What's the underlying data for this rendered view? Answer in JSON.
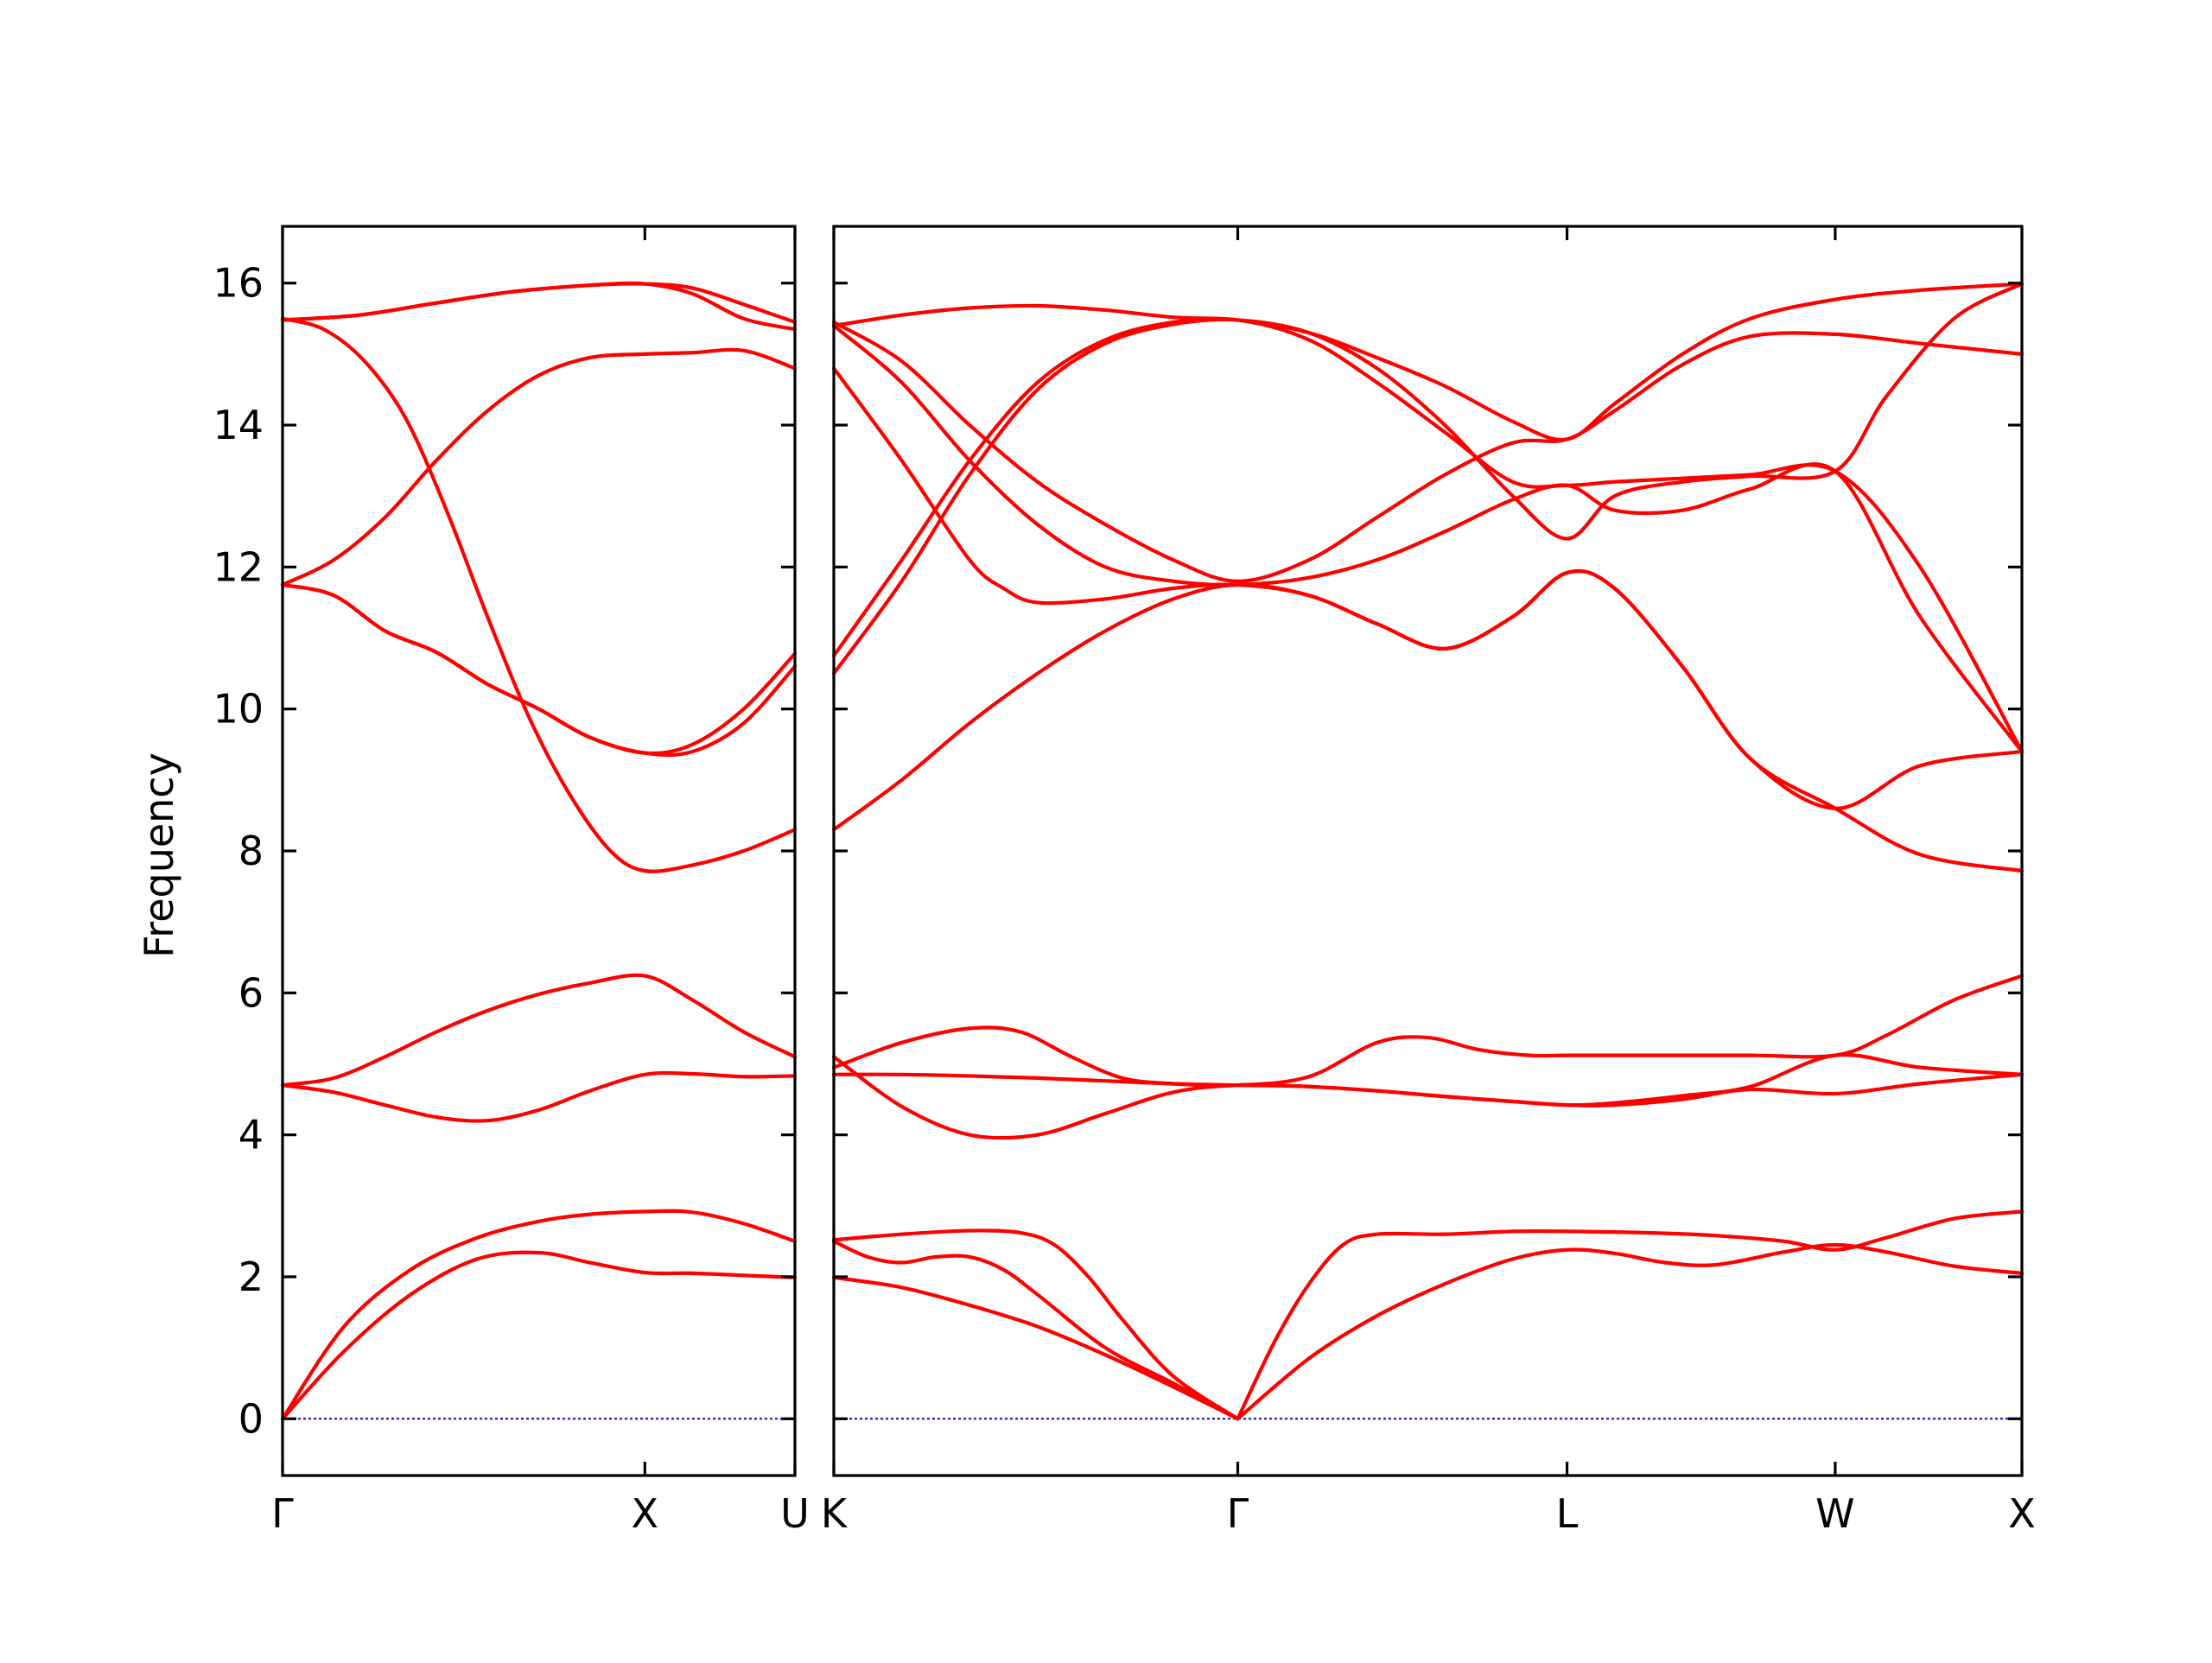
{
  "chart_data": {
    "type": "line",
    "ylabel": "Frequency",
    "ylim": [
      -0.8,
      16.8
    ],
    "yticks": [
      0,
      2,
      4,
      6,
      8,
      10,
      12,
      14,
      16
    ],
    "band_color": "#ff0000",
    "zero_line_color": "#0000cc",
    "grid": false,
    "segments": [
      {
        "name": "left",
        "xlim": [
          0,
          1.0
        ],
        "qpoint_ticks": [
          {
            "x": 0,
            "label": "Γ"
          },
          {
            "x": 0.7071,
            "label": "X"
          },
          {
            "x": 1.0,
            "label": "U"
          }
        ],
        "bands": [
          {
            "x": [
              0,
              0.12,
              0.25,
              0.38,
              0.5,
              0.6,
              0.7071,
              0.8,
              0.9,
              1.0
            ],
            "y": [
              0,
              0.95,
              1.75,
              2.25,
              2.34,
              2.2,
              2.06,
              2.05,
              2.02,
              1.99
            ]
          },
          {
            "x": [
              0,
              0.12,
              0.25,
              0.38,
              0.5,
              0.6,
              0.7071,
              0.8,
              0.9,
              1.0
            ],
            "y": [
              0,
              1.3,
              2.1,
              2.55,
              2.78,
              2.88,
              2.92,
              2.91,
              2.75,
              2.5
            ]
          },
          {
            "x": [
              0,
              0.1,
              0.2,
              0.3,
              0.4,
              0.5,
              0.6,
              0.7071,
              0.8,
              0.9,
              1.0
            ],
            "y": [
              4.7,
              4.6,
              4.42,
              4.25,
              4.2,
              4.35,
              4.62,
              4.85,
              4.86,
              4.82,
              4.83
            ]
          },
          {
            "x": [
              0,
              0.1,
              0.2,
              0.3,
              0.4,
              0.5,
              0.6,
              0.7071,
              0.8,
              0.9,
              1.0
            ],
            "y": [
              4.7,
              4.8,
              5.1,
              5.45,
              5.75,
              5.98,
              6.14,
              6.24,
              5.9,
              5.45,
              5.1
            ]
          },
          {
            "x": [
              0,
              0.08,
              0.16,
              0.24,
              0.32,
              0.4,
              0.48,
              0.56,
              0.64,
              0.7071,
              0.8,
              0.9,
              1.0
            ],
            "y": [
              15.5,
              15.35,
              14.9,
              14.1,
              12.8,
              11.3,
              9.9,
              8.8,
              8.0,
              7.72,
              7.8,
              8.0,
              8.3
            ]
          },
          {
            "x": [
              0,
              0.1,
              0.2,
              0.3,
              0.4,
              0.5,
              0.6,
              0.7071,
              0.8,
              0.9,
              1.0
            ],
            "y": [
              11.75,
              11.6,
              11.1,
              10.8,
              10.35,
              10.0,
              9.6,
              9.38,
              9.4,
              9.8,
              10.6
            ]
          },
          {
            "x": [
              0,
              0.1,
              0.2,
              0.3,
              0.4,
              0.5,
              0.6,
              0.7071,
              0.8,
              0.9,
              1.0
            ],
            "y": [
              11.75,
              11.6,
              11.1,
              10.8,
              10.35,
              10.0,
              9.6,
              9.38,
              9.5,
              10.0,
              10.78
            ]
          },
          {
            "x": [
              0,
              0.1,
              0.2,
              0.3,
              0.4,
              0.5,
              0.6,
              0.7071,
              0.8,
              0.9,
              1.0
            ],
            "y": [
              11.75,
              12.1,
              12.7,
              13.5,
              14.2,
              14.7,
              14.95,
              15.0,
              15.02,
              15.05,
              14.8
            ]
          },
          {
            "x": [
              0,
              0.15,
              0.3,
              0.45,
              0.6,
              0.7071,
              0.8,
              0.9,
              1.0
            ],
            "y": [
              15.48,
              15.55,
              15.72,
              15.88,
              15.97,
              15.99,
              15.93,
              15.7,
              15.45
            ]
          },
          {
            "x": [
              0,
              0.15,
              0.3,
              0.45,
              0.6,
              0.7071,
              0.8,
              0.9,
              1.0
            ],
            "y": [
              15.48,
              15.55,
              15.72,
              15.88,
              15.97,
              15.99,
              15.85,
              15.5,
              15.35
            ]
          }
        ]
      },
      {
        "name": "right",
        "xlim": [
          0,
          3.5
        ],
        "qpoint_ticks": [
          {
            "x": 0,
            "label": "K"
          },
          {
            "x": 1.19,
            "label": "Γ"
          },
          {
            "x": 2.16,
            "label": "L"
          },
          {
            "x": 2.95,
            "label": "W"
          },
          {
            "x": 3.5,
            "label": "X"
          }
        ],
        "bands": [
          {
            "x": [
              0,
              0.2,
              0.4,
              0.6,
              0.8,
              1.0,
              1.19
            ],
            "y": [
              1.99,
              1.85,
              1.6,
              1.3,
              0.9,
              0.45,
              0
            ]
          },
          {
            "x": [
              0,
              0.1,
              0.2,
              0.3,
              0.4,
              0.5,
              0.6,
              0.8,
              1.0,
              1.19
            ],
            "y": [
              2.5,
              2.28,
              2.2,
              2.28,
              2.28,
              2.1,
              1.75,
              1.0,
              0.5,
              0
            ]
          },
          {
            "x": [
              0,
              0.2,
              0.4,
              0.55,
              0.65,
              0.75,
              0.85,
              1.0,
              1.19
            ],
            "y": [
              2.52,
              2.6,
              2.65,
              2.62,
              2.45,
              2.0,
              1.4,
              0.6,
              0
            ]
          },
          {
            "x": [
              1.19,
              1.4,
              1.6,
              1.8,
              2.0,
              2.16,
              2.3,
              2.45,
              2.6,
              2.8,
              2.95,
              3.1,
              3.3,
              3.5
            ],
            "y": [
              0,
              0.85,
              1.45,
              1.9,
              2.25,
              2.38,
              2.33,
              2.2,
              2.17,
              2.35,
              2.45,
              2.35,
              2.15,
              2.05
            ]
          },
          {
            "x": [
              1.19,
              1.3,
              1.4,
              1.5,
              1.6,
              1.8,
              2.0,
              2.16,
              2.4,
              2.6,
              2.8,
              2.95,
              3.1,
              3.3,
              3.5
            ],
            "y": [
              0,
              1.1,
              1.9,
              2.45,
              2.6,
              2.6,
              2.64,
              2.64,
              2.62,
              2.58,
              2.5,
              2.38,
              2.55,
              2.82,
              2.92
            ]
          },
          {
            "x": [
              0,
              0.2,
              0.4,
              0.6,
              0.8,
              1.0,
              1.19,
              1.4,
              1.6,
              1.8,
              2.0,
              2.16,
              2.3,
              2.5,
              2.7,
              2.95,
              3.2,
              3.5
            ],
            "y": [
              4.85,
              4.85,
              4.83,
              4.8,
              4.76,
              4.72,
              4.7,
              4.68,
              4.62,
              4.54,
              4.47,
              4.42,
              4.42,
              4.5,
              4.64,
              4.58,
              4.72,
              4.85
            ]
          },
          {
            "x": [
              0,
              0.2,
              0.4,
              0.6,
              0.8,
              1.0,
              1.19,
              1.4,
              1.6,
              1.8,
              2.0,
              2.16,
              2.3,
              2.5,
              2.7,
              2.95,
              3.2,
              3.5
            ],
            "y": [
              5.1,
              4.4,
              4.0,
              4.0,
              4.3,
              4.6,
              4.7,
              4.68,
              4.62,
              4.54,
              4.47,
              4.42,
              4.45,
              4.55,
              4.68,
              5.12,
              4.95,
              4.85
            ]
          },
          {
            "x": [
              0,
              0.2,
              0.4,
              0.55,
              0.7,
              0.85,
              1.0,
              1.19,
              1.4,
              1.6,
              1.75,
              1.9,
              2.05,
              2.16,
              2.4,
              2.7,
              2.95,
              3.1,
              3.3,
              3.5
            ],
            "y": [
              4.95,
              5.3,
              5.5,
              5.45,
              5.1,
              4.8,
              4.72,
              4.7,
              4.82,
              5.3,
              5.37,
              5.2,
              5.12,
              5.12,
              5.12,
              5.12,
              5.12,
              5.4,
              5.9,
              6.24
            ]
          },
          {
            "x": [
              0,
              0.2,
              0.4,
              0.6,
              0.8,
              1.0,
              1.19,
              1.4,
              1.6,
              1.8,
              2.0,
              2.16,
              2.3,
              2.5,
              2.7,
              2.95,
              3.2,
              3.5
            ],
            "y": [
              8.3,
              9.0,
              9.8,
              10.5,
              11.1,
              11.55,
              11.75,
              11.6,
              11.2,
              10.85,
              11.3,
              11.92,
              11.7,
              10.6,
              9.3,
              8.6,
              7.95,
              7.72
            ]
          },
          {
            "x": [
              0,
              0.2,
              0.4,
              0.5,
              0.6,
              0.8,
              1.0,
              1.19,
              1.4,
              1.6,
              1.8,
              2.0,
              2.16,
              2.3,
              2.5,
              2.7,
              2.95,
              3.2,
              3.5
            ],
            "y": [
              14.8,
              13.5,
              12.1,
              11.7,
              11.5,
              11.55,
              11.7,
              11.75,
              11.6,
              11.2,
              10.85,
              11.3,
              11.92,
              11.7,
              10.6,
              9.3,
              8.6,
              9.2,
              9.4
            ]
          },
          {
            "x": [
              0,
              0.2,
              0.4,
              0.6,
              0.8,
              1.0,
              1.19,
              1.4,
              1.6,
              1.8,
              2.0,
              2.16,
              2.3,
              2.5,
              2.7,
              2.95,
              3.2,
              3.5
            ],
            "y": [
              15.4,
              14.6,
              13.5,
              12.6,
              12.0,
              11.8,
              11.75,
              11.85,
              12.1,
              12.5,
              12.95,
              13.15,
              12.8,
              12.8,
              13.1,
              13.35,
              11.3,
              9.4
            ]
          },
          {
            "x": [
              0,
              0.2,
              0.4,
              0.6,
              0.8,
              1.0,
              1.19,
              1.4,
              1.6,
              1.8,
              2.0,
              2.16,
              2.3,
              2.5,
              2.7,
              2.95,
              3.1,
              3.3,
              3.5
            ],
            "y": [
              10.5,
              11.8,
              13.3,
              14.5,
              15.15,
              15.42,
              15.48,
              15.3,
              14.8,
              14.0,
              13.0,
              12.4,
              13.0,
              13.2,
              13.28,
              13.35,
              14.4,
              15.5,
              15.99
            ]
          },
          {
            "x": [
              0,
              0.2,
              0.4,
              0.6,
              0.8,
              1.0,
              1.19,
              1.4,
              1.6,
              1.8,
              2.0,
              2.16,
              2.3,
              2.5,
              2.7,
              2.95,
              3.2,
              3.5
            ],
            "y": [
              10.75,
              12.1,
              13.5,
              14.6,
              15.2,
              15.45,
              15.48,
              15.2,
              14.6,
              13.9,
              13.2,
              13.15,
              13.2,
              13.25,
              13.3,
              13.35,
              12.0,
              9.4
            ]
          },
          {
            "x": [
              0,
              0.2,
              0.4,
              0.6,
              0.8,
              1.0,
              1.19,
              1.4,
              1.6,
              1.8,
              2.0,
              2.16,
              2.3,
              2.5,
              2.7,
              2.95,
              3.2,
              3.5
            ],
            "y": [
              15.45,
              14.9,
              14.0,
              13.2,
              12.6,
              12.1,
              11.8,
              12.1,
              12.7,
              13.3,
              13.75,
              13.8,
              14.2,
              14.85,
              15.25,
              15.28,
              15.15,
              15.0
            ]
          },
          {
            "x": [
              0,
              0.2,
              0.4,
              0.6,
              0.8,
              1.0,
              1.19,
              1.4,
              1.6,
              1.8,
              2.0,
              2.16,
              2.3,
              2.5,
              2.7,
              2.95,
              3.2,
              3.5
            ],
            "y": [
              15.4,
              15.55,
              15.65,
              15.68,
              15.62,
              15.52,
              15.48,
              15.3,
              14.95,
              14.55,
              14.05,
              13.8,
              14.3,
              15.0,
              15.5,
              15.77,
              15.9,
              15.99
            ]
          }
        ]
      }
    ]
  }
}
